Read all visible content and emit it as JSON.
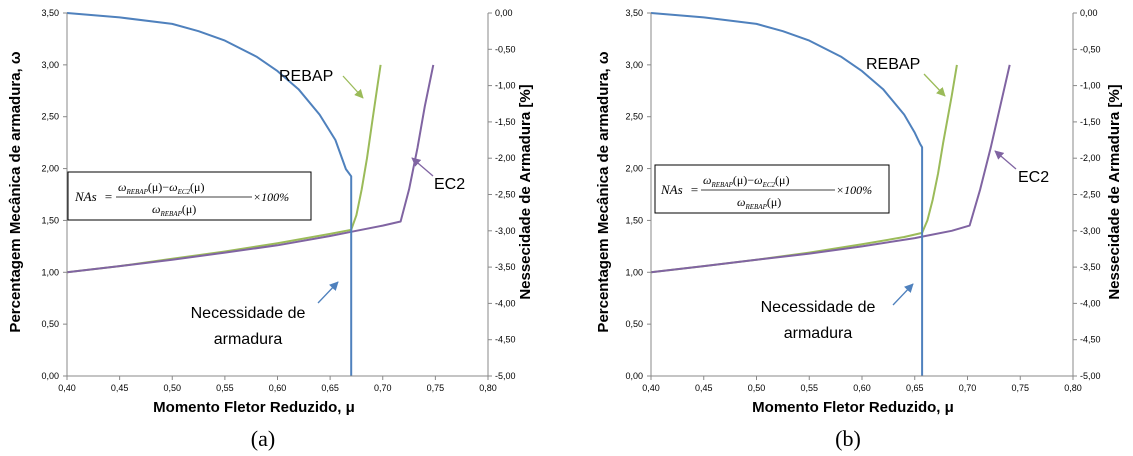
{
  "chart_data": [
    {
      "type": "line",
      "panel_label": "(a)",
      "xlabel": "Momento Fletor  Reduzido, μ",
      "ylabel": "Percentagem Mecânica de armadura, ω",
      "y2label": "Nessecidade de Armadura [%]",
      "xlim": [
        0.4,
        0.8
      ],
      "ylim": [
        0,
        3.5
      ],
      "y2lim": [
        -5,
        0
      ],
      "x_ticks": [
        "0,40",
        "0,45",
        "0,50",
        "0,55",
        "0,60",
        "0,65",
        "0,70",
        "0,75",
        "0,80"
      ],
      "y_ticks": [
        "0,00",
        "0,50",
        "1,00",
        "1,50",
        "2,00",
        "2,50",
        "3,00",
        "3,50"
      ],
      "y2_ticks": [
        "0,00",
        "-0,50",
        "-1,00",
        "-1,50",
        "-2,00",
        "-2,50",
        "-3,00",
        "-3,50",
        "-4,00",
        "-4,50",
        "-5,00"
      ],
      "series": [
        {
          "name": "REBAP",
          "axis": "left",
          "color": "#9bbb59",
          "x": [
            0.4,
            0.45,
            0.5,
            0.55,
            0.6,
            0.65,
            0.67,
            0.675,
            0.68,
            0.685,
            0.69,
            0.695,
            0.698
          ],
          "y": [
            1.0,
            1.06,
            1.13,
            1.2,
            1.28,
            1.37,
            1.41,
            1.55,
            1.8,
            2.1,
            2.45,
            2.8,
            3.0
          ]
        },
        {
          "name": "EC2",
          "axis": "left",
          "color": "#8064a2",
          "x": [
            0.4,
            0.45,
            0.5,
            0.55,
            0.6,
            0.65,
            0.67,
            0.7,
            0.717,
            0.725,
            0.733,
            0.74,
            0.748
          ],
          "y": [
            1.0,
            1.06,
            1.12,
            1.19,
            1.26,
            1.35,
            1.39,
            1.45,
            1.49,
            1.8,
            2.2,
            2.6,
            3.0
          ]
        },
        {
          "name": "Necessidade de armadura",
          "axis": "right",
          "color": "#4f81bd",
          "x": [
            0.4,
            0.45,
            0.5,
            0.525,
            0.55,
            0.58,
            0.6,
            0.62,
            0.64,
            0.655,
            0.665,
            0.67,
            0.67
          ],
          "y": [
            0.0,
            -0.06,
            -0.15,
            -0.25,
            -0.38,
            -0.6,
            -0.8,
            -1.05,
            -1.4,
            -1.75,
            -2.15,
            -2.25,
            -5.0
          ]
        }
      ],
      "annotations": [
        "REBAP",
        "EC2",
        "Necessidade de",
        "armadura"
      ],
      "formula": {
        "lhs": "NAs",
        "num_a": "ω",
        "sub_a": "REBAP",
        "arg": "(μ)",
        "minus": "−",
        "num_b": "ω",
        "sub_b": "EC2",
        "den": "ω",
        "sub_den": "REBAP",
        "suffix": "×100%",
        "eq": "="
      }
    },
    {
      "type": "line",
      "panel_label": "(b)",
      "xlabel": "Momento Fletor  Reduzido, μ",
      "ylabel": "Percentagem Mecânica de armadura, ω",
      "y2label": "Nessecidade de Armadura [%]",
      "xlim": [
        0.4,
        0.8
      ],
      "ylim": [
        0,
        3.5
      ],
      "y2lim": [
        -5,
        0
      ],
      "x_ticks": [
        "0,40",
        "0,45",
        "0,50",
        "0,55",
        "0,60",
        "0,65",
        "0,70",
        "0,75",
        "0,80"
      ],
      "y_ticks": [
        "0,00",
        "0,50",
        "1,00",
        "1,50",
        "2,00",
        "2,50",
        "3,00",
        "3,50"
      ],
      "y2_ticks": [
        "0,00",
        "-0,50",
        "-1,00",
        "-1,50",
        "-2,00",
        "-2,50",
        "-3,00",
        "-3,50",
        "-4,00",
        "-4,50",
        "-5,00"
      ],
      "series": [
        {
          "name": "REBAP",
          "axis": "left",
          "color": "#9bbb59",
          "x": [
            0.4,
            0.45,
            0.5,
            0.55,
            0.6,
            0.64,
            0.657,
            0.662,
            0.667,
            0.672,
            0.677,
            0.685,
            0.69
          ],
          "y": [
            1.0,
            1.06,
            1.12,
            1.19,
            1.27,
            1.34,
            1.38,
            1.5,
            1.7,
            1.95,
            2.25,
            2.7,
            3.0
          ]
        },
        {
          "name": "EC2",
          "axis": "left",
          "color": "#8064a2",
          "x": [
            0.4,
            0.45,
            0.5,
            0.55,
            0.6,
            0.65,
            0.66,
            0.685,
            0.702,
            0.712,
            0.722,
            0.731,
            0.74
          ],
          "y": [
            1.0,
            1.06,
            1.12,
            1.18,
            1.25,
            1.33,
            1.35,
            1.4,
            1.45,
            1.8,
            2.2,
            2.6,
            3.0
          ]
        },
        {
          "name": "Necessidade de armadura",
          "axis": "right",
          "color": "#4f81bd",
          "x": [
            0.4,
            0.45,
            0.5,
            0.525,
            0.55,
            0.58,
            0.6,
            0.62,
            0.64,
            0.65,
            0.655,
            0.657,
            0.657
          ],
          "y": [
            0.0,
            -0.06,
            -0.15,
            -0.25,
            -0.38,
            -0.6,
            -0.8,
            -1.05,
            -1.4,
            -1.65,
            -1.8,
            -1.85,
            -5.0
          ]
        }
      ],
      "annotations": [
        "REBAP",
        "EC2",
        "Necessidade de",
        "armadura"
      ],
      "formula": {
        "lhs": "NAs",
        "num_a": "ω",
        "sub_a": "REBAP",
        "arg": "(μ)",
        "minus": "−",
        "num_b": "ω",
        "sub_b": "EC2",
        "den": "ω",
        "sub_den": "REBAP",
        "suffix": "×100%",
        "eq": "="
      }
    }
  ]
}
